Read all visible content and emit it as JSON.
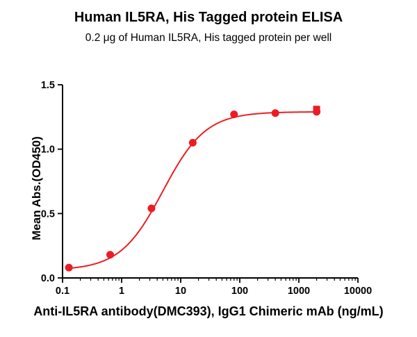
{
  "chart_data": {
    "type": "scatter",
    "title": "Human IL5RA, His Tagged protein ELISA",
    "subtitle": "0.2 μg of Human IL5RA, His tagged protein per well",
    "xlabel": "Anti-IL5RA antibody(DMC393), IgG1 Chimeric mAb (ng/mL)",
    "ylabel": "Mean Abs.(OD450)",
    "x_scale": "log",
    "xlim": [
      0.1,
      10000
    ],
    "ylim": [
      0,
      1.5
    ],
    "x_ticks": [
      0.1,
      1,
      10,
      100,
      1000,
      10000
    ],
    "x_tick_labels": [
      "0.1",
      "1",
      "10",
      "100",
      "1000",
      "10000"
    ],
    "y_ticks": [
      0,
      0.5,
      1,
      1.5
    ],
    "y_tick_labels": [
      "0.0",
      "0.5",
      "1.0",
      "1.5"
    ],
    "grid": false,
    "legend": "none",
    "accent_color": "#ED1C24",
    "axis_color": "#000000",
    "series": [
      {
        "marker": "square",
        "color": "#ED1C24",
        "points": [
          [
            2000,
            1.31
          ]
        ]
      },
      {
        "marker": "circle",
        "color": "#ED1C24",
        "points": [
          [
            0.128,
            0.08
          ],
          [
            0.64,
            0.18
          ],
          [
            3.2,
            0.54
          ],
          [
            16,
            1.05
          ],
          [
            80,
            1.27
          ],
          [
            400,
            1.28
          ],
          [
            2000,
            1.29
          ]
        ]
      }
    ],
    "fit": {
      "model": "4PL",
      "bottom": 0.06,
      "top": 1.29,
      "ec50": 5.0,
      "hill": 1.2,
      "x_range": [
        0.128,
        2000
      ],
      "color": "#ED1C24"
    }
  }
}
